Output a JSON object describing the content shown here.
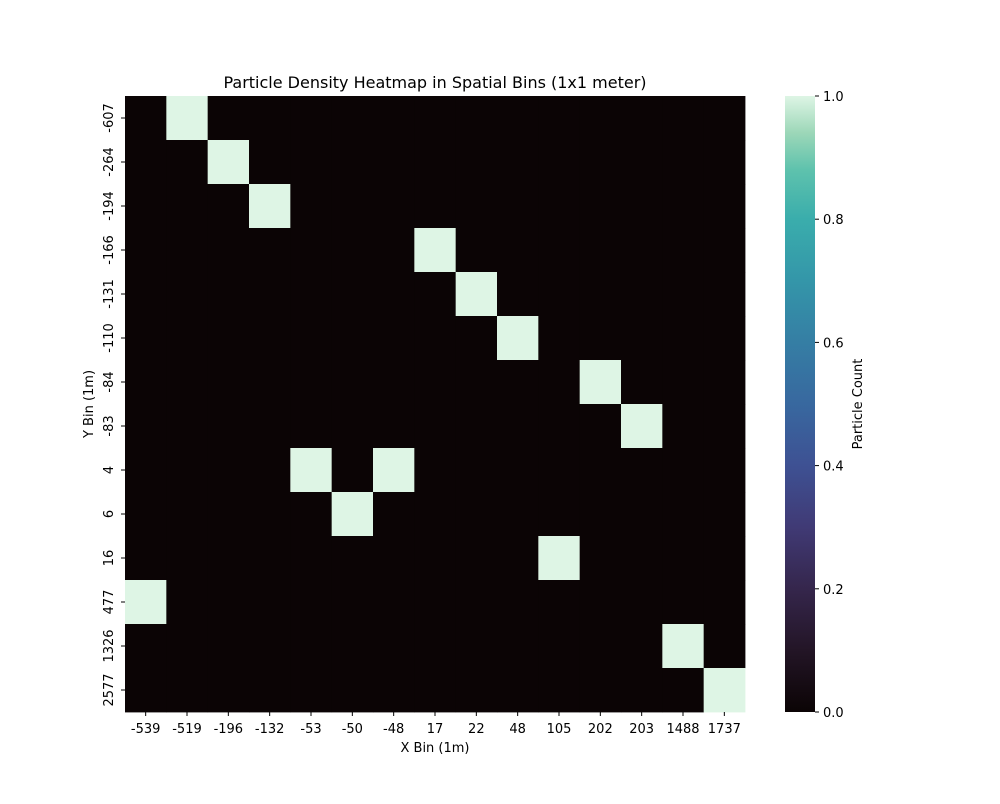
{
  "chart_data": {
    "type": "heatmap",
    "title": "Particle Density Heatmap in Spatial Bins (1x1 meter)",
    "xlabel": "X Bin (1m)",
    "ylabel": "Y Bin (1m)",
    "x_categories": [
      "-539",
      "-519",
      "-196",
      "-132",
      "-53",
      "-50",
      "-48",
      "17",
      "22",
      "48",
      "105",
      "202",
      "203",
      "1488",
      "1737"
    ],
    "y_categories": [
      "-607",
      "-264",
      "-194",
      "-166",
      "-131",
      "-110",
      "-84",
      "-83",
      "4",
      "6",
      "16",
      "477",
      "1326",
      "2577"
    ],
    "values": [
      [
        0,
        1,
        0,
        0,
        0,
        0,
        0,
        0,
        0,
        0,
        0,
        0,
        0,
        0,
        0
      ],
      [
        0,
        0,
        1,
        0,
        0,
        0,
        0,
        0,
        0,
        0,
        0,
        0,
        0,
        0,
        0
      ],
      [
        0,
        0,
        0,
        1,
        0,
        0,
        0,
        0,
        0,
        0,
        0,
        0,
        0,
        0,
        0
      ],
      [
        0,
        0,
        0,
        0,
        0,
        0,
        0,
        1,
        0,
        0,
        0,
        0,
        0,
        0,
        0
      ],
      [
        0,
        0,
        0,
        0,
        0,
        0,
        0,
        0,
        1,
        0,
        0,
        0,
        0,
        0,
        0
      ],
      [
        0,
        0,
        0,
        0,
        0,
        0,
        0,
        0,
        0,
        1,
        0,
        0,
        0,
        0,
        0
      ],
      [
        0,
        0,
        0,
        0,
        0,
        0,
        0,
        0,
        0,
        0,
        0,
        1,
        0,
        0,
        0
      ],
      [
        0,
        0,
        0,
        0,
        0,
        0,
        0,
        0,
        0,
        0,
        0,
        0,
        1,
        0,
        0
      ],
      [
        0,
        0,
        0,
        0,
        1,
        0,
        1,
        0,
        0,
        0,
        0,
        0,
        0,
        0,
        0
      ],
      [
        0,
        0,
        0,
        0,
        0,
        1,
        0,
        0,
        0,
        0,
        0,
        0,
        0,
        0,
        0
      ],
      [
        0,
        0,
        0,
        0,
        0,
        0,
        0,
        0,
        0,
        0,
        1,
        0,
        0,
        0,
        0
      ],
      [
        1,
        0,
        0,
        0,
        0,
        0,
        0,
        0,
        0,
        0,
        0,
        0,
        0,
        0,
        0
      ],
      [
        0,
        0,
        0,
        0,
        0,
        0,
        0,
        0,
        0,
        0,
        0,
        0,
        0,
        1,
        0
      ],
      [
        0,
        0,
        0,
        0,
        0,
        0,
        0,
        0,
        0,
        0,
        0,
        0,
        0,
        0,
        1
      ]
    ],
    "colorbar": {
      "label": "Particle Count",
      "range": [
        0,
        1
      ],
      "ticks": [
        "0.0",
        "0.2",
        "0.4",
        "0.6",
        "0.8",
        "1.0"
      ],
      "colormap": "mako",
      "low_color": "#0b0405",
      "high_color": "#def5e5"
    },
    "grid": false
  }
}
